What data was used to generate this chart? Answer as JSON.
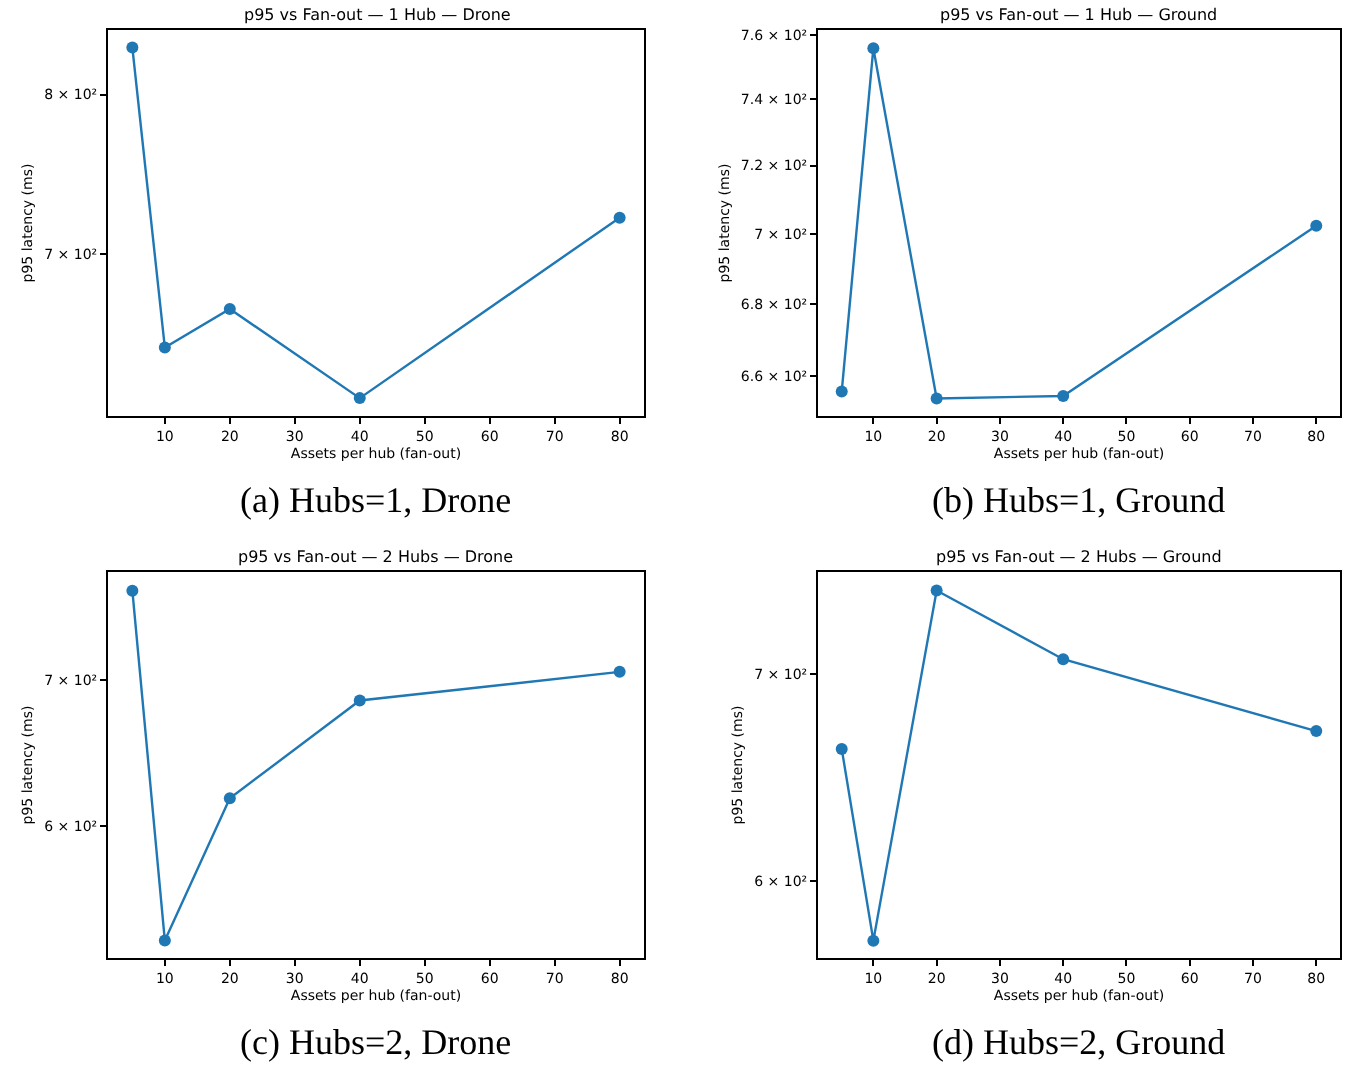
{
  "chart_data": [
    {
      "type": "line",
      "title": "p95 vs Fan-out — 1 Hub — Drone",
      "xlabel": "Assets per hub (fan-out)",
      "ylabel": "p95 latency (ms)",
      "annotations": [
        "(a) Hubs=1, Drone"
      ],
      "x": [
        5,
        10,
        20,
        40,
        80
      ],
      "series": [
        {
          "color": "#1f77b4",
          "values": [
            832,
            647.6,
            668.8,
            620.8,
            721.8
          ]
        }
      ],
      "xlim": [
        1.25,
        83.75
      ],
      "ylim": [
        611.6,
        844.3
      ],
      "xticks": [
        10,
        20,
        30,
        40,
        50,
        60,
        70,
        80
      ],
      "yticks": [
        {
          "value": 700,
          "label": "7 × 10²"
        },
        {
          "value": 800,
          "label": "8 × 10²"
        }
      ],
      "log": true,
      "marker": "circle"
    },
    {
      "type": "line",
      "title": "p95 vs Fan-out — 1 Hub — Ground",
      "xlabel": "Assets per hub (fan-out)",
      "ylabel": "p95 latency (ms)",
      "annotations": [
        "(b) Hubs=1, Ground"
      ],
      "x": [
        5,
        10,
        20,
        40,
        80
      ],
      "series": [
        {
          "color": "#1f77b4",
          "values": [
            655.8,
            755.8,
            653.9,
            654.6,
            702.3
          ]
        }
      ],
      "xlim": [
        1.25,
        83.75
      ],
      "ylim": [
        649.2,
        761.5
      ],
      "xticks": [
        10,
        20,
        30,
        40,
        50,
        60,
        70,
        80
      ],
      "yticks": [
        {
          "value": 660,
          "label": "6.6 × 10²"
        },
        {
          "value": 680,
          "label": "6.8 × 10²"
        },
        {
          "value": 700,
          "label": "7 × 10²"
        },
        {
          "value": 720,
          "label": "7.2 × 10²"
        },
        {
          "value": 740,
          "label": "7.4 × 10²"
        },
        {
          "value": 760,
          "label": "7.6 × 10²"
        }
      ],
      "log": true,
      "marker": "circle"
    },
    {
      "type": "line",
      "title": "p95 vs Fan-out — 2 Hubs — Drone",
      "xlabel": "Assets per hub (fan-out)",
      "ylabel": "p95 latency (ms)",
      "annotations": [
        "(c) Hubs=2, Drone"
      ],
      "x": [
        5,
        10,
        20,
        40,
        80
      ],
      "series": [
        {
          "color": "#1f77b4",
          "values": [
            768.9,
            531.9,
            617.9,
            684.9,
            705.9
          ]
        }
      ],
      "xlim": [
        1.25,
        83.75
      ],
      "ylim": [
        522.2,
        784.2
      ],
      "xticks": [
        10,
        20,
        30,
        40,
        50,
        60,
        70,
        80
      ],
      "yticks": [
        {
          "value": 600,
          "label": "6 × 10²"
        },
        {
          "value": 700,
          "label": "7 × 10²"
        }
      ],
      "log": true,
      "marker": "circle"
    },
    {
      "type": "line",
      "title": "p95 vs Fan-out — 2 Hubs — Ground",
      "xlabel": "Assets per hub (fan-out)",
      "ylabel": "p95 latency (ms)",
      "annotations": [
        "(d) Hubs=2, Ground"
      ],
      "x": [
        5,
        10,
        20,
        40,
        80
      ],
      "series": [
        {
          "color": "#1f77b4",
          "values": [
            662.1,
            573.7,
            745.3,
            708.0,
            671.0
          ]
        }
      ],
      "xlim": [
        1.25,
        83.75
      ],
      "ylim": [
        566.3,
        755.7
      ],
      "xticks": [
        10,
        20,
        30,
        40,
        50,
        60,
        70,
        80
      ],
      "yticks": [
        {
          "value": 600,
          "label": "6 × 10²"
        },
        {
          "value": 700,
          "label": "7 × 10²"
        }
      ],
      "log": true,
      "marker": "circle"
    }
  ]
}
